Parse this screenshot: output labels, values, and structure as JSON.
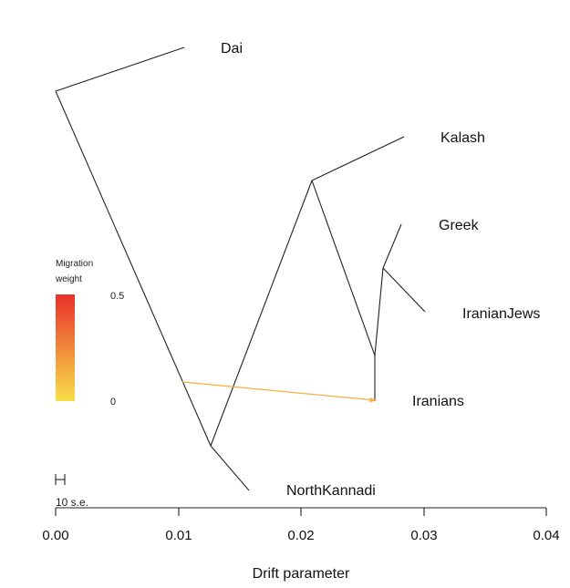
{
  "diagram": {
    "xaxis": {
      "label": "Drift parameter",
      "ticks": [
        "0.00",
        "0.01",
        "0.02",
        "0.03",
        "0.04"
      ],
      "range": [
        0.0,
        0.04
      ]
    },
    "leaves": [
      "Dai",
      "Kalash",
      "Greek",
      "IranianJews",
      "Iranians",
      "NorthKannadi"
    ],
    "legend": {
      "title_line1": "Migration",
      "title_line2": "weight",
      "max_label": "0.5",
      "min_label": "0",
      "color_high": "#e8302a",
      "color_low": "#f7e04a"
    },
    "scale_bar": {
      "label": "10 s.e."
    },
    "colors": {
      "edge": "#222222",
      "migration": "#f4b042"
    }
  }
}
